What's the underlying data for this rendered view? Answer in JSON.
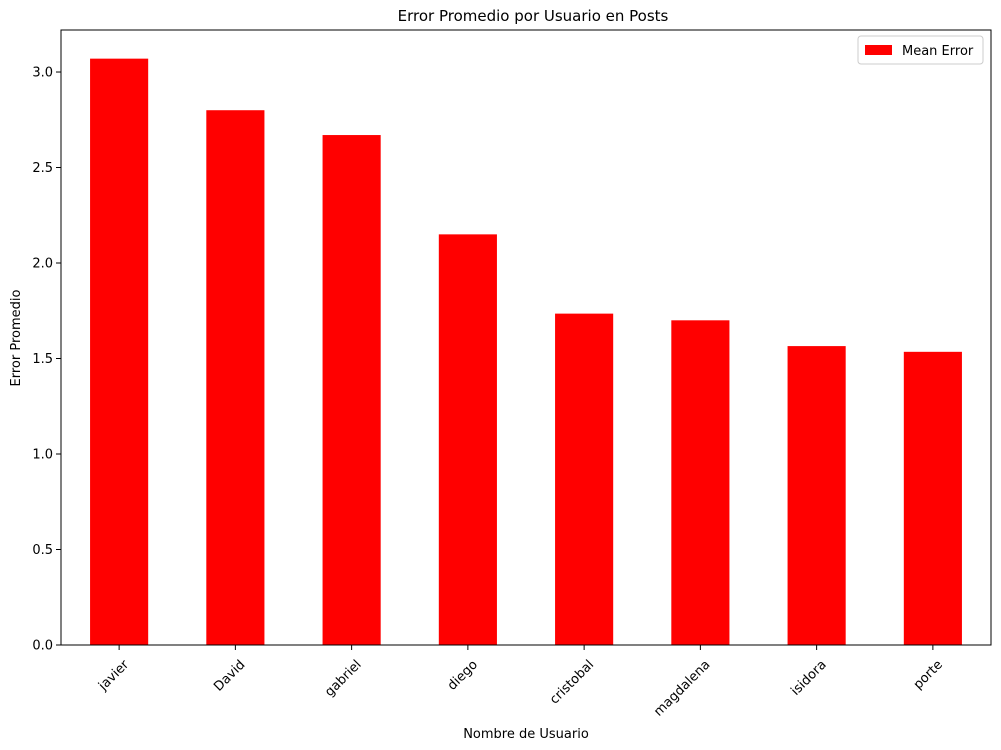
{
  "chart_data": {
    "type": "bar",
    "title": "Error Promedio por Usuario en Posts",
    "xlabel": "Nombre de Usuario",
    "ylabel": "Error Promedio",
    "categories": [
      "javier",
      "David",
      "gabriel",
      "diego",
      "cristobal",
      "magdalena",
      "isidora",
      "porte"
    ],
    "series": [
      {
        "name": "Mean Error",
        "values": [
          3.07,
          2.8,
          2.67,
          2.15,
          1.735,
          1.7,
          1.565,
          1.535
        ],
        "color": "#ff0000"
      }
    ],
    "ylim": [
      0,
      3.22
    ],
    "yticks": [
      "0.0",
      "0.5",
      "1.0",
      "1.5",
      "2.0",
      "2.5",
      "3.0"
    ],
    "grid": false,
    "legend_position": "top-right"
  }
}
